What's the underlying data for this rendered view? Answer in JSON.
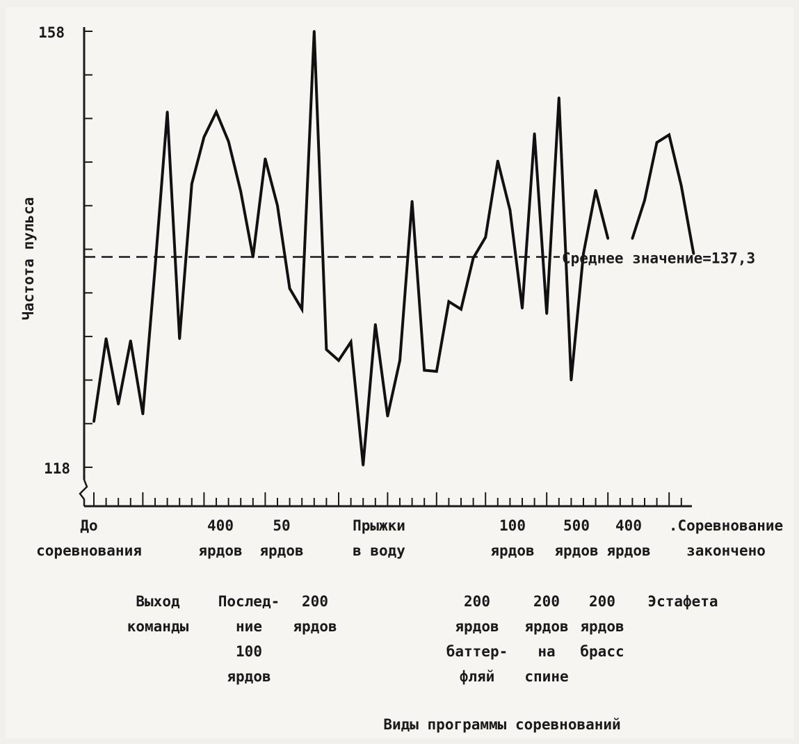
{
  "chart_data": {
    "type": "line",
    "title": "",
    "ylabel": "Частота пульса",
    "xlabel": "Виды программы соревнований",
    "ylim": [
      118,
      158
    ],
    "y_tick_labels": [
      "158",
      "118"
    ],
    "mean": {
      "value": 137.3,
      "label": "Среднее значение=137,3"
    },
    "series": [
      {
        "values": [
          122.2,
          129.8,
          123.8,
          129.6,
          122.9,
          136.3,
          150.6,
          129.8,
          144.0,
          148.3,
          150.6,
          147.9,
          143.3,
          137.3,
          146.3,
          142.0,
          134.4,
          132.5,
          158.0,
          128.8,
          127.8,
          129.5,
          118.2,
          131.1,
          122.7,
          127.8,
          142.4,
          126.9,
          126.8,
          133.2,
          132.5,
          137.2,
          139.1,
          146.1,
          141.6,
          132.6,
          148.6,
          132.1,
          151.9,
          126.0,
          137.6,
          143.4,
          139.0,
          null,
          139.0,
          142.5,
          147.8,
          148.5,
          143.8,
          137.6
        ]
      }
    ],
    "x_annotations": {
      "row1": [
        {
          "lines": [
            "До",
            "соревнования"
          ]
        },
        {
          "lines": [
            "400",
            "ярдов"
          ]
        },
        {
          "lines": [
            "50",
            "ярдов"
          ]
        },
        {
          "lines": [
            "Прыжки",
            "в воду"
          ]
        },
        {
          "lines": [
            "100",
            "ярдов"
          ]
        },
        {
          "lines": [
            "500",
            "ярдов"
          ]
        },
        {
          "lines": [
            "400",
            "ярдов"
          ]
        },
        {
          "lines": [
            ".Соревнование",
            "закончено"
          ]
        }
      ],
      "row2": [
        {
          "lines": [
            "Выход",
            "команды"
          ]
        },
        {
          "lines": [
            "Послед-",
            "ние",
            "100",
            "ярдов"
          ]
        },
        {
          "lines": [
            "200",
            "ярдов"
          ]
        },
        {
          "lines": [
            "200",
            "ярдов",
            "баттер-",
            "фляй"
          ]
        },
        {
          "lines": [
            "200",
            "ярдов",
            "на",
            "спине"
          ]
        },
        {
          "lines": [
            "200",
            "ярдов",
            "брасс"
          ]
        },
        {
          "lines": [
            "Эстафета"
          ]
        }
      ]
    }
  }
}
